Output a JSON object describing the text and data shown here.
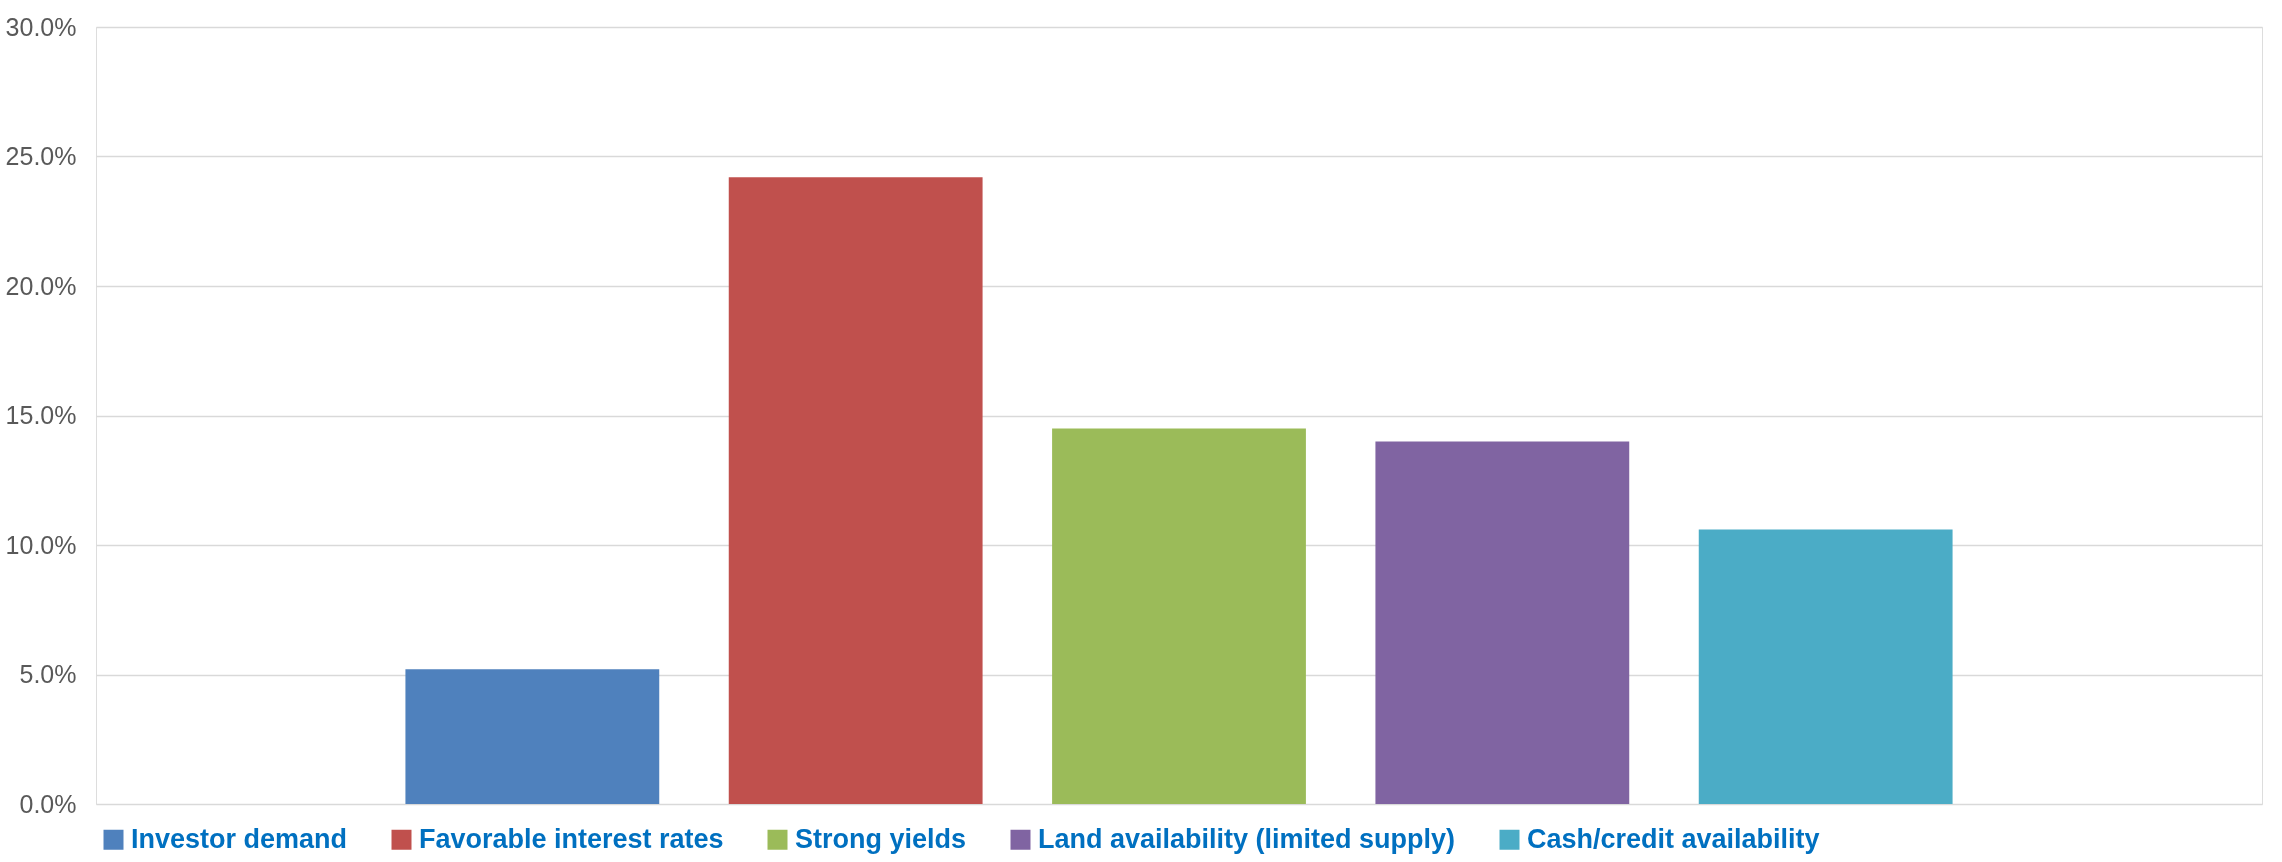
{
  "chart_data": {
    "type": "bar",
    "categories": [
      null
    ],
    "series": [
      {
        "name": "Investor demand",
        "color": "#4f81bd",
        "values": [
          5.2
        ]
      },
      {
        "name": "Favorable interest rates",
        "color": "#c0504d",
        "values": [
          24.2
        ]
      },
      {
        "name": "Strong yields",
        "color": "#9bbb59",
        "values": [
          14.5
        ]
      },
      {
        "name": "Land availability (limited supply)",
        "color": "#8064a2",
        "values": [
          14.0
        ]
      },
      {
        "name": "Cash/credit availability",
        "color": "#4bacc6",
        "values": [
          10.6
        ]
      }
    ],
    "ylim": [
      0,
      30
    ],
    "yticks": [
      {
        "value": 0,
        "label": "0.0%"
      },
      {
        "value": 5,
        "label": "5.0%"
      },
      {
        "value": 10,
        "label": "10.0%"
      },
      {
        "value": 15,
        "label": "15.0%"
      },
      {
        "value": 20,
        "label": "20.0%"
      },
      {
        "value": 25,
        "label": "25.0%"
      },
      {
        "value": 30,
        "label": "30.0%"
      }
    ],
    "grid": "y",
    "legend": "bottom"
  }
}
